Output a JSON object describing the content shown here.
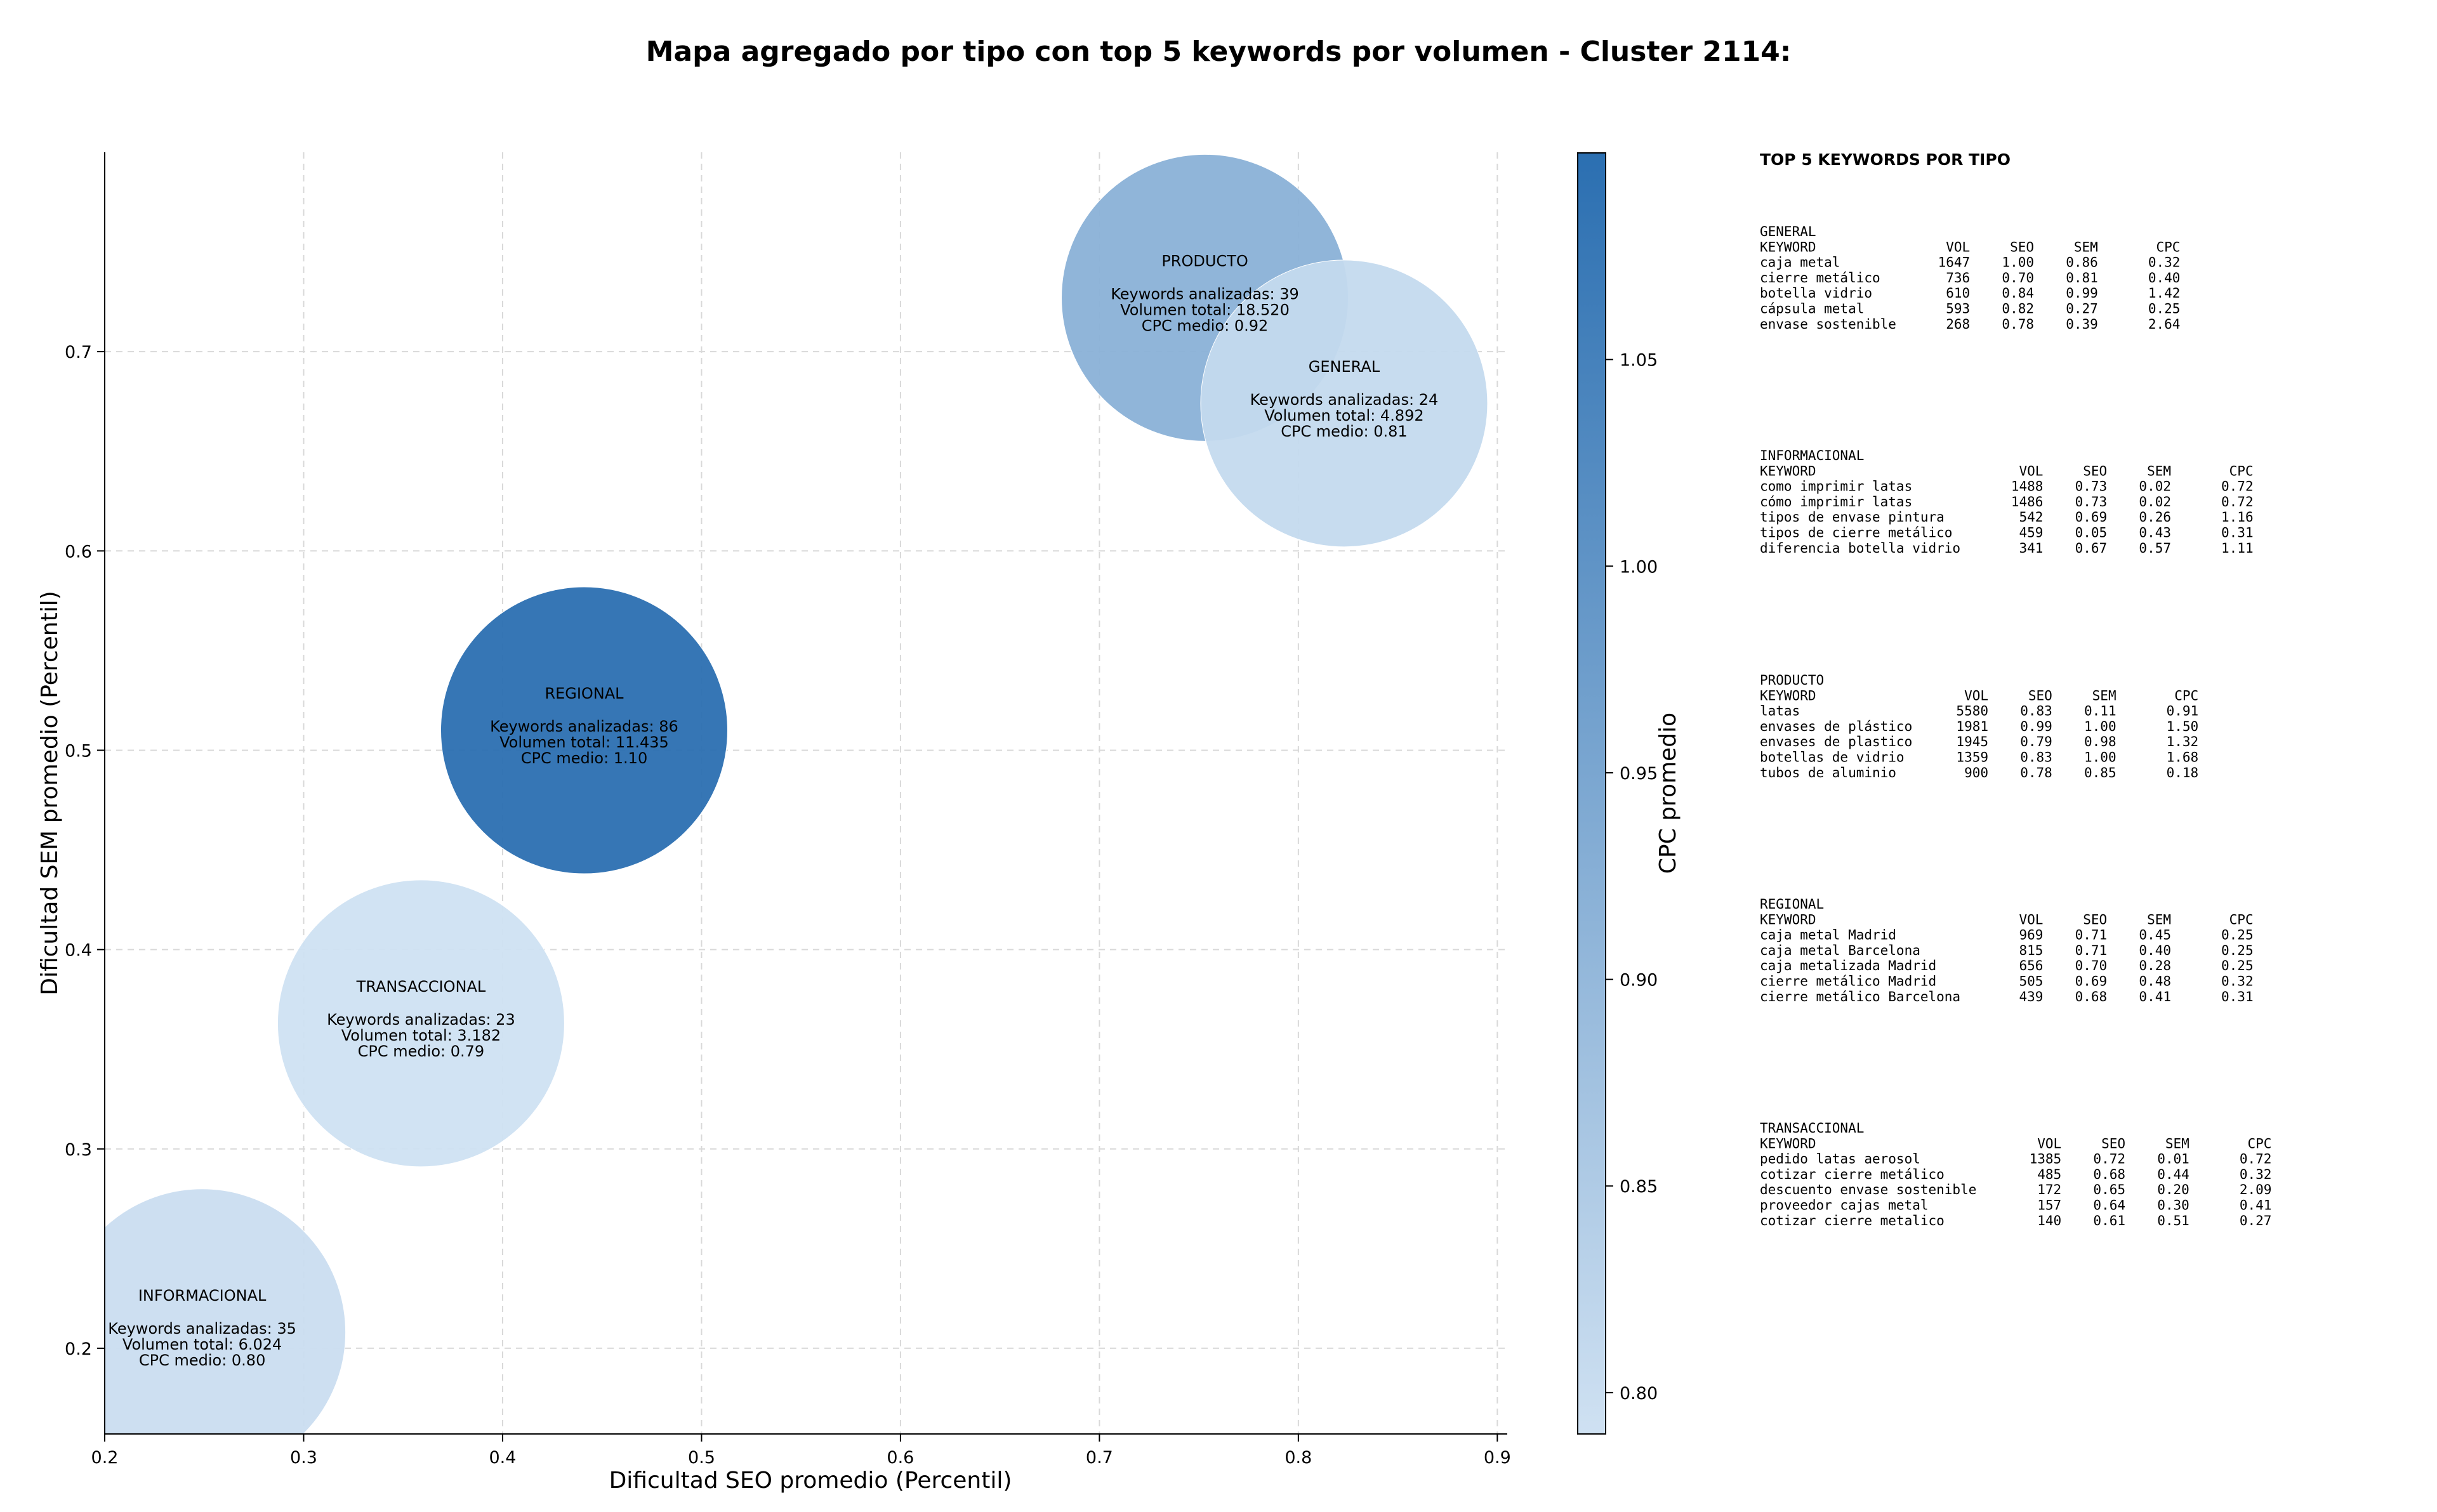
{
  "chart_data": {
    "type": "scatter",
    "title": "Mapa agregado por tipo con top 5 keywords por volumen - Cluster 2114:",
    "xlabel": "Dificultad SEO promedio (Percentil)",
    "ylabel": "Dificultad SEM promedio (Percentil)",
    "xlim": [
      0.2,
      0.905
    ],
    "ylim": [
      0.157,
      0.8
    ],
    "xticks": [
      "0.2",
      "0.3",
      "0.4",
      "0.5",
      "0.6",
      "0.7",
      "0.8",
      "0.9"
    ],
    "yticks": [
      "0.2",
      "0.3",
      "0.4",
      "0.5",
      "0.6",
      "0.7"
    ],
    "grid": true,
    "colorbar": {
      "label": "CPC promedio",
      "range": [
        0.79,
        1.1
      ],
      "ticks": [
        "0.80",
        "0.85",
        "0.90",
        "0.95",
        "1.00",
        "1.05"
      ],
      "color_low": "#cfe1f2",
      "color_high": "#2b6fb1"
    },
    "bubbles": [
      {
        "name": "INFORMACIONAL",
        "x": 0.249,
        "y": 0.208,
        "cpc": 0.8,
        "lines": [
          "Keywords analizadas: 35",
          "Volumen total: 6.024",
          "CPC medio: 0.80"
        ]
      },
      {
        "name": "TRANSACCIONAL",
        "x": 0.359,
        "y": 0.363,
        "cpc": 0.79,
        "lines": [
          "Keywords analizadas: 23",
          "Volumen total: 3.182",
          "CPC medio: 0.79"
        ]
      },
      {
        "name": "REGIONAL",
        "x": 0.441,
        "y": 0.51,
        "cpc": 1.1,
        "lines": [
          "Keywords analizadas: 86",
          "Volumen total: 11.435",
          "CPC medio: 1.10"
        ]
      },
      {
        "name": "PRODUCTO",
        "x": 0.753,
        "y": 0.727,
        "cpc": 0.92,
        "lines": [
          "Keywords analizadas: 39",
          "Volumen total: 18.520",
          "CPC medio: 0.92"
        ]
      },
      {
        "name": "GENERAL",
        "x": 0.823,
        "y": 0.674,
        "cpc": 0.81,
        "lines": [
          "Keywords analizadas: 24",
          "Volumen total: 4.892",
          "CPC medio: 0.81"
        ]
      }
    ],
    "side_panel": {
      "title": "TOP 5 KEYWORDS POR TIPO",
      "header": [
        "KEYWORD",
        "VOL",
        "SEO",
        "SEM",
        "CPC"
      ],
      "groups": [
        {
          "name": "GENERAL",
          "rows": [
            [
              "caja metal",
              "1647",
              "1.00",
              "0.86",
              "0.32"
            ],
            [
              "cierre metálico",
              "736",
              "0.70",
              "0.81",
              "0.40"
            ],
            [
              "botella vidrio",
              "610",
              "0.84",
              "0.99",
              "1.42"
            ],
            [
              "cápsula metal",
              "593",
              "0.82",
              "0.27",
              "0.25"
            ],
            [
              "envase sostenible",
              "268",
              "0.78",
              "0.39",
              "2.64"
            ]
          ]
        },
        {
          "name": "INFORMACIONAL",
          "rows": [
            [
              "como imprimir latas",
              "1488",
              "0.73",
              "0.02",
              "0.72"
            ],
            [
              "cómo imprimir latas",
              "1486",
              "0.73",
              "0.02",
              "0.72"
            ],
            [
              "tipos de envase pintura",
              "542",
              "0.69",
              "0.26",
              "1.16"
            ],
            [
              "tipos de cierre metálico",
              "459",
              "0.05",
              "0.43",
              "0.31"
            ],
            [
              "diferencia botella vidrio",
              "341",
              "0.67",
              "0.57",
              "1.11"
            ]
          ]
        },
        {
          "name": "PRODUCTO",
          "rows": [
            [
              "latas",
              "5580",
              "0.83",
              "0.11",
              "0.91"
            ],
            [
              "envases de plástico",
              "1981",
              "0.99",
              "1.00",
              "1.50"
            ],
            [
              "envases de plastico",
              "1945",
              "0.79",
              "0.98",
              "1.32"
            ],
            [
              "botellas de vidrio",
              "1359",
              "0.83",
              "1.00",
              "1.68"
            ],
            [
              "tubos de aluminio",
              "900",
              "0.78",
              "0.85",
              "0.18"
            ]
          ]
        },
        {
          "name": "REGIONAL",
          "rows": [
            [
              "caja metal Madrid",
              "969",
              "0.71",
              "0.45",
              "0.25"
            ],
            [
              "caja metal Barcelona",
              "815",
              "0.71",
              "0.40",
              "0.25"
            ],
            [
              "caja metalizada Madrid",
              "656",
              "0.70",
              "0.28",
              "0.25"
            ],
            [
              "cierre metálico Madrid",
              "505",
              "0.69",
              "0.48",
              "0.32"
            ],
            [
              "cierre metálico Barcelona",
              "439",
              "0.68",
              "0.41",
              "0.31"
            ]
          ]
        },
        {
          "name": "TRANSACCIONAL",
          "rows": [
            [
              "pedido latas aerosol",
              "1385",
              "0.72",
              "0.01",
              "0.72"
            ],
            [
              "cotizar cierre metálico",
              "485",
              "0.68",
              "0.44",
              "0.32"
            ],
            [
              "descuento envase sostenible",
              "172",
              "0.65",
              "0.20",
              "2.09"
            ],
            [
              "proveedor cajas metal",
              "157",
              "0.64",
              "0.30",
              "0.41"
            ],
            [
              "cotizar cierre metalico",
              "140",
              "0.61",
              "0.51",
              "0.27"
            ]
          ]
        }
      ]
    }
  }
}
